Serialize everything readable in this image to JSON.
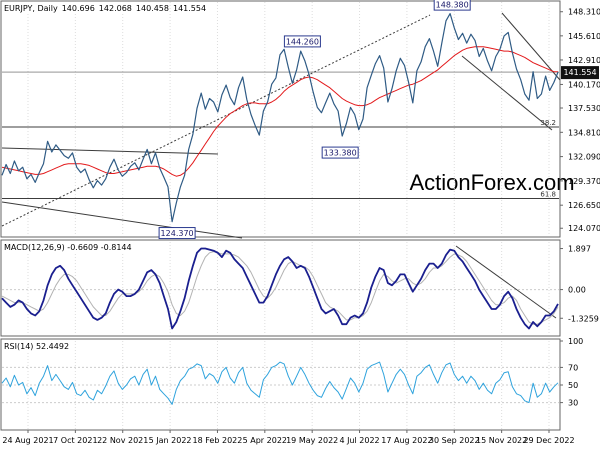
{
  "colors": {
    "price": "#2f5b85",
    "ma": "#e31a1c",
    "macd": "#1a1f8f",
    "signal": "#b3b3b3",
    "rsi": "#2fa3dd",
    "trendline": "#3c3c3c",
    "grid": "#dddddd",
    "frame": "#666666",
    "label_border": "#2b3a8f",
    "watermark": "#d7dde2"
  },
  "chart_data": [
    {
      "type": "line",
      "panel": "price",
      "title": "EURJPY, Daily",
      "ohlc": [
        "140.696",
        "142.068",
        "140.458",
        "141.554"
      ],
      "last_value_label": "141.554",
      "watermark": "ActionForex.com",
      "y_ticks": [
        "148.310",
        "145.610",
        "142.910",
        "140.170",
        "137.530",
        "134.810",
        "132.090",
        "129.370",
        "126.650",
        "124.070"
      ],
      "ylim": [
        123.2,
        149.4
      ],
      "log_scale": false,
      "grid": true,
      "annotations": [
        {
          "text": "148.380",
          "x": 108.5,
          "y": 148.38
        },
        {
          "text": "144.260",
          "x": 72.4,
          "y": 144.26
        },
        {
          "text": "133.380",
          "x": 81.5,
          "y": 133.38
        },
        {
          "text": "124.370",
          "x": 42.2,
          "y": 124.37
        }
      ],
      "levels": [
        {
          "text": "38.2",
          "y": 135.4
        },
        {
          "text": "61.8",
          "y": 127.4
        }
      ],
      "close": [
        130.0,
        131.2,
        130.2,
        131.6,
        130.5,
        130.9,
        129.6,
        130.1,
        129.2,
        130.3,
        131.3,
        133.8,
        132.6,
        133.4,
        132.8,
        132.2,
        131.9,
        132.5,
        130.9,
        130.3,
        130.7,
        129.5,
        128.6,
        129.4,
        128.9,
        129.6,
        130.9,
        131.8,
        130.6,
        129.9,
        130.3,
        131.0,
        131.4,
        130.6,
        131.8,
        132.9,
        131.3,
        132.5,
        130.8,
        129.8,
        128.7,
        124.8,
        126.9,
        128.7,
        130.0,
        132.9,
        134.6,
        137.5,
        139.2,
        137.4,
        138.6,
        138.2,
        137.1,
        139.0,
        140.1,
        138.7,
        137.9,
        139.8,
        141.0,
        138.5,
        136.8,
        135.6,
        134.5,
        137.2,
        138.2,
        140.2,
        140.9,
        143.5,
        144.1,
        142.1,
        140.3,
        141.8,
        143.9,
        142.8,
        141.3,
        139.3,
        137.6,
        137.0,
        138.1,
        139.2,
        138.0,
        137.2,
        134.4,
        135.8,
        137.6,
        136.8,
        135.1,
        136.3,
        139.8,
        141.2,
        142.5,
        143.4,
        142.0,
        138.2,
        139.7,
        141.7,
        143.1,
        142.3,
        140.4,
        138.1,
        141.7,
        142.7,
        144.4,
        145.3,
        143.9,
        142.2,
        144.8,
        147.3,
        148.1,
        146.5,
        145.2,
        145.9,
        144.8,
        145.8,
        145.1,
        143.3,
        144.2,
        142.8,
        141.7,
        143.3,
        144.1,
        145.6,
        146.0,
        143.7,
        141.9,
        140.7,
        139.1,
        138.4,
        141.6,
        138.6,
        139.1,
        141.1,
        139.5,
        140.4,
        141.554
      ],
      "moving_average": [
        130.9,
        130.8,
        130.7,
        130.6,
        130.5,
        130.4,
        130.3,
        130.2,
        130.1,
        130.1,
        130.2,
        130.4,
        130.6,
        130.8,
        131.0,
        131.2,
        131.3,
        131.3,
        131.3,
        131.3,
        131.2,
        131.1,
        130.9,
        130.7,
        130.5,
        130.3,
        130.2,
        130.2,
        130.3,
        130.4,
        130.5,
        130.6,
        130.7,
        130.8,
        130.9,
        131.0,
        131.0,
        131.0,
        130.9,
        130.7,
        130.4,
        130.1,
        129.9,
        130.0,
        130.3,
        130.8,
        131.4,
        132.1,
        132.8,
        133.5,
        134.2,
        134.9,
        135.5,
        136.0,
        136.5,
        136.9,
        137.2,
        137.5,
        137.8,
        138.0,
        138.1,
        138.1,
        138.0,
        138.0,
        138.0,
        138.2,
        138.5,
        138.9,
        139.4,
        139.8,
        140.1,
        140.4,
        140.7,
        140.9,
        141.0,
        140.9,
        140.7,
        140.4,
        140.1,
        139.8,
        139.4,
        139.0,
        138.6,
        138.3,
        138.1,
        137.9,
        137.8,
        137.8,
        137.9,
        138.1,
        138.4,
        138.7,
        138.9,
        139.1,
        139.3,
        139.5,
        139.7,
        139.9,
        140.1,
        140.2,
        140.4,
        140.6,
        140.9,
        141.2,
        141.5,
        141.8,
        142.2,
        142.6,
        143.0,
        143.4,
        143.7,
        144.0,
        144.2,
        144.3,
        144.4,
        144.4,
        144.4,
        144.3,
        144.2,
        144.1,
        144.0,
        143.9,
        143.9,
        143.8,
        143.6,
        143.4,
        143.2,
        142.9,
        142.6,
        142.4,
        142.2,
        142.0,
        141.8,
        141.6,
        141.6
      ]
    },
    {
      "type": "line",
      "panel": "macd",
      "title": "MACD(12,26,9) -0.6609 -0.8144",
      "y_ticks": [
        "1.897",
        "0.00",
        "-1.3259"
      ],
      "ylim": [
        -2.1,
        2.2
      ],
      "grid": true,
      "series": [
        {
          "values": [
            -0.4,
            -0.6,
            -0.8,
            -0.7,
            -0.5,
            -0.6,
            -0.9,
            -1.1,
            -1.2,
            -1.0,
            -0.5,
            0.2,
            0.7,
            1.0,
            1.1,
            0.9,
            0.5,
            0.2,
            -0.1,
            -0.4,
            -0.7,
            -1.0,
            -1.3,
            -1.4,
            -1.3,
            -1.1,
            -0.6,
            -0.2,
            0.0,
            -0.1,
            -0.3,
            -0.3,
            -0.2,
            0.0,
            0.4,
            0.8,
            0.9,
            0.7,
            0.3,
            -0.3,
            -0.9,
            -1.8,
            -1.5,
            -1.0,
            -0.4,
            0.4,
            1.1,
            1.7,
            1.9,
            1.9,
            1.85,
            1.8,
            1.7,
            1.5,
            1.8,
            1.7,
            1.4,
            1.2,
            1.0,
            0.6,
            0.2,
            -0.2,
            -0.6,
            -0.6,
            -0.3,
            0.2,
            0.7,
            1.1,
            1.4,
            1.5,
            1.3,
            1.0,
            1.1,
            1.0,
            0.6,
            0.1,
            -0.4,
            -0.9,
            -1.1,
            -1.0,
            -0.9,
            -1.2,
            -1.6,
            -1.6,
            -1.3,
            -1.2,
            -1.3,
            -1.1,
            -0.6,
            0.1,
            0.6,
            1.0,
            0.9,
            0.3,
            0.2,
            0.4,
            0.7,
            0.7,
            0.3,
            -0.1,
            0.2,
            0.5,
            0.9,
            1.2,
            1.2,
            1.0,
            1.2,
            1.6,
            1.85,
            1.8,
            1.5,
            1.3,
            1.0,
            0.7,
            0.4,
            0.0,
            -0.3,
            -0.6,
            -0.9,
            -0.9,
            -0.7,
            -0.3,
            -0.1,
            -0.4,
            -0.9,
            -1.3,
            -1.6,
            -1.8,
            -1.5,
            -1.7,
            -1.5,
            -1.2,
            -1.2,
            -1.0,
            -0.66
          ]
        },
        {
          "values": [
            -0.3,
            -0.4,
            -0.5,
            -0.6,
            -0.6,
            -0.6,
            -0.7,
            -0.8,
            -0.9,
            -1.0,
            -0.9,
            -0.6,
            -0.2,
            0.2,
            0.5,
            0.7,
            0.7,
            0.6,
            0.4,
            0.1,
            -0.2,
            -0.5,
            -0.8,
            -1.0,
            -1.2,
            -1.2,
            -1.0,
            -0.7,
            -0.4,
            -0.2,
            -0.2,
            -0.2,
            -0.2,
            -0.1,
            0.1,
            0.4,
            0.6,
            0.7,
            0.6,
            0.3,
            -0.1,
            -0.7,
            -1.1,
            -1.2,
            -1.0,
            -0.6,
            0.0,
            0.6,
            1.1,
            1.5,
            1.7,
            1.75,
            1.7,
            1.65,
            1.65,
            1.65,
            1.6,
            1.5,
            1.3,
            1.1,
            0.8,
            0.4,
            0.0,
            -0.3,
            -0.4,
            -0.2,
            0.1,
            0.5,
            0.9,
            1.2,
            1.3,
            1.2,
            1.1,
            1.05,
            0.9,
            0.6,
            0.2,
            -0.2,
            -0.6,
            -0.8,
            -0.9,
            -1.0,
            -1.2,
            -1.4,
            -1.4,
            -1.3,
            -1.3,
            -1.2,
            -1.0,
            -0.6,
            -0.1,
            0.4,
            0.7,
            0.6,
            0.4,
            0.3,
            0.4,
            0.5,
            0.5,
            0.3,
            0.2,
            0.3,
            0.5,
            0.8,
            1.0,
            1.0,
            1.1,
            1.3,
            1.5,
            1.65,
            1.6,
            1.5,
            1.3,
            1.0,
            0.7,
            0.4,
            0.1,
            -0.2,
            -0.5,
            -0.7,
            -0.7,
            -0.6,
            -0.4,
            -0.3,
            -0.5,
            -0.9,
            -1.2,
            -1.5,
            -1.6,
            -1.6,
            -1.5,
            -1.4,
            -1.3,
            -1.1,
            -0.81
          ]
        }
      ]
    },
    {
      "type": "line",
      "panel": "rsi",
      "title": "RSI(14) 52.4492",
      "y_ticks": [
        "100",
        "70",
        "50",
        "30"
      ],
      "ylim": [
        0,
        100
      ],
      "grid": true,
      "series": [
        {
          "values": [
            52,
            58,
            48,
            61,
            50,
            53,
            40,
            47,
            38,
            52,
            60,
            72,
            55,
            62,
            55,
            48,
            45,
            53,
            40,
            38,
            44,
            36,
            33,
            44,
            40,
            49,
            60,
            66,
            52,
            45,
            50,
            57,
            60,
            50,
            62,
            68,
            50,
            60,
            45,
            40,
            35,
            28,
            45,
            55,
            60,
            68,
            70,
            74,
            72,
            57,
            63,
            60,
            52,
            65,
            70,
            58,
            52,
            64,
            70,
            52,
            44,
            40,
            36,
            56,
            62,
            70,
            72,
            76,
            74,
            60,
            50,
            60,
            70,
            62,
            52,
            44,
            38,
            36,
            46,
            54,
            47,
            42,
            34,
            46,
            58,
            52,
            42,
            52,
            68,
            72,
            74,
            76,
            62,
            42,
            52,
            62,
            68,
            62,
            50,
            40,
            60,
            64,
            70,
            73,
            62,
            52,
            64,
            73,
            75,
            62,
            55,
            60,
            52,
            60,
            55,
            45,
            52,
            44,
            40,
            52,
            56,
            64,
            65,
            48,
            40,
            38,
            32,
            30,
            52,
            36,
            40,
            52,
            42,
            48,
            52.4492
          ]
        }
      ]
    }
  ],
  "x_ticks": [
    "24 Aug 2021",
    "7 Oct 2021",
    "22 Nov 2021",
    "5 Jan 2022",
    "18 Feb 2022",
    "5 Apr 2022",
    "19 May 2022",
    "4 Jul 2022",
    "17 Aug 2022",
    "30 Sep 2022",
    "15 Nov 2022",
    "29 Dec 2022"
  ]
}
